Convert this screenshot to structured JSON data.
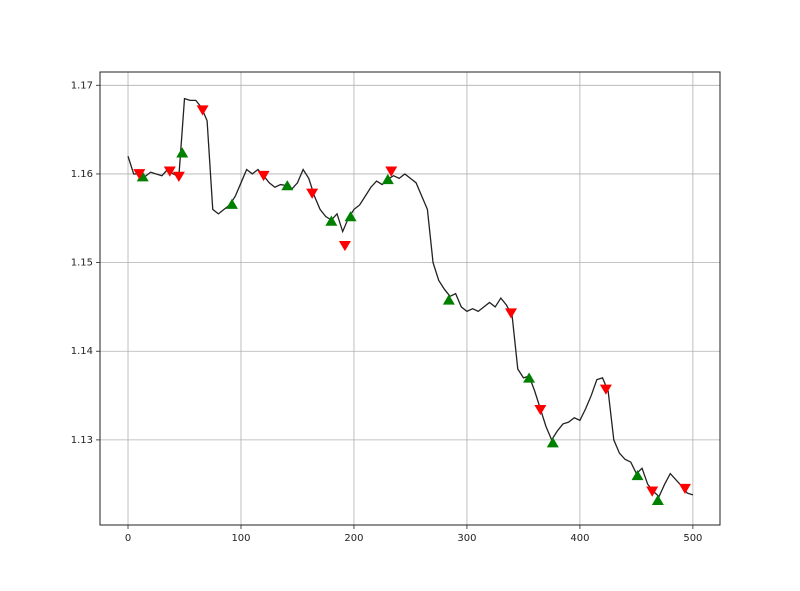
{
  "chart_data": {
    "type": "line",
    "x": [
      0,
      5,
      10,
      15,
      20,
      25,
      30,
      35,
      40,
      45,
      50,
      55,
      60,
      65,
      70,
      75,
      80,
      85,
      90,
      95,
      100,
      105,
      110,
      115,
      120,
      125,
      130,
      135,
      140,
      145,
      150,
      155,
      160,
      165,
      170,
      175,
      180,
      185,
      190,
      195,
      200,
      205,
      210,
      215,
      220,
      225,
      230,
      235,
      240,
      245,
      250,
      255,
      260,
      265,
      270,
      275,
      280,
      285,
      290,
      295,
      300,
      305,
      310,
      315,
      320,
      325,
      330,
      335,
      340,
      345,
      350,
      355,
      360,
      365,
      370,
      375,
      380,
      385,
      390,
      395,
      400,
      405,
      410,
      415,
      420,
      425,
      430,
      435,
      440,
      445,
      450,
      455,
      460,
      465,
      470,
      475,
      480,
      485,
      490,
      495,
      500
    ],
    "values": [
      1.162,
      1.16,
      1.16,
      1.1597,
      1.1602,
      1.16,
      1.1598,
      1.1605,
      1.16,
      1.1597,
      1.1685,
      1.1683,
      1.1683,
      1.1675,
      1.166,
      1.156,
      1.1555,
      1.156,
      1.1565,
      1.1575,
      1.159,
      1.1605,
      1.16,
      1.1605,
      1.1598,
      1.159,
      1.1585,
      1.1588,
      1.1587,
      1.1583,
      1.159,
      1.1605,
      1.1595,
      1.1575,
      1.156,
      1.1552,
      1.1548,
      1.1555,
      1.1535,
      1.155,
      1.156,
      1.1565,
      1.1575,
      1.1585,
      1.1592,
      1.1588,
      1.1594,
      1.1598,
      1.1595,
      1.16,
      1.1595,
      1.159,
      1.1575,
      1.156,
      1.15,
      1.148,
      1.147,
      1.1462,
      1.1465,
      1.145,
      1.1445,
      1.1448,
      1.1445,
      1.145,
      1.1455,
      1.145,
      1.146,
      1.1452,
      1.144,
      1.138,
      1.137,
      1.1372,
      1.1355,
      1.1335,
      1.1315,
      1.13,
      1.131,
      1.1318,
      1.132,
      1.1325,
      1.1322,
      1.1335,
      1.135,
      1.1368,
      1.137,
      1.1355,
      1.13,
      1.1285,
      1.1278,
      1.1275,
      1.1262,
      1.1268,
      1.125,
      1.1242,
      1.1236,
      1.125,
      1.1262,
      1.1255,
      1.1248,
      1.124,
      1.1238
    ],
    "color": "#222222",
    "buy": {
      "x": [
        13,
        48,
        92,
        141,
        180,
        197,
        230,
        284,
        355,
        376,
        451,
        469
      ],
      "y": [
        1.1597,
        1.1624,
        1.1566,
        1.1587,
        1.1547,
        1.1552,
        1.1594,
        1.1458,
        1.137,
        1.1297,
        1.126,
        1.1232
      ],
      "color": "green"
    },
    "sell": {
      "x": [
        10,
        37,
        45,
        66,
        120,
        163,
        192,
        233,
        339,
        365,
        423,
        464,
        493
      ],
      "y": [
        1.16,
        1.1603,
        1.1597,
        1.1672,
        1.1598,
        1.1578,
        1.1519,
        1.1603,
        1.1443,
        1.1334,
        1.1357,
        1.1242,
        1.1245
      ],
      "color": "red"
    },
    "xlim": [
      -24.8,
      524
    ],
    "ylim": [
      1.1204,
      1.1715
    ],
    "xticks": [
      0,
      100,
      200,
      300,
      400,
      500
    ],
    "yticks": [
      1.13,
      1.14,
      1.15,
      1.16,
      1.17
    ],
    "grid": true
  }
}
